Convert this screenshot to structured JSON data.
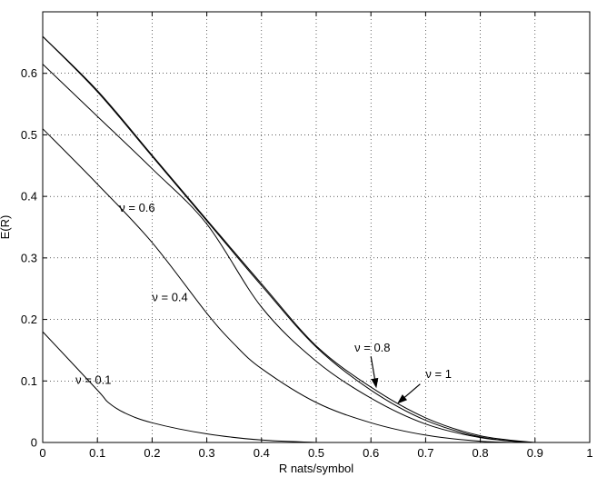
{
  "chart_data": {
    "type": "line",
    "title": "",
    "xlabel": "R nats/symbol",
    "ylabel": "E(R)",
    "xlim": [
      0,
      1
    ],
    "ylim": [
      0,
      0.7
    ],
    "grid": true,
    "x_ticks": [
      0,
      0.1,
      0.2,
      0.3,
      0.4,
      0.5,
      0.6,
      0.7,
      0.8,
      0.9,
      1
    ],
    "x_tick_labels": [
      "0",
      "0.1",
      "0.2",
      "0.3",
      "0.4",
      "0.5",
      "0.6",
      "0.7",
      "0.8",
      "0.9",
      "1"
    ],
    "y_ticks": [
      0,
      0.1,
      0.2,
      0.3,
      0.4,
      0.5,
      0.6
    ],
    "y_tick_labels": [
      "0",
      "0.1",
      "0.2",
      "0.3",
      "0.4",
      "0.5",
      "0.6"
    ],
    "series": [
      {
        "name": "ν = 0.1",
        "points": [
          [
            0,
            0.18
          ],
          [
            0.1,
            0.085
          ],
          [
            0.12,
            0.065
          ],
          [
            0.15,
            0.048
          ],
          [
            0.2,
            0.032
          ],
          [
            0.3,
            0.014
          ],
          [
            0.4,
            0.004
          ],
          [
            0.5,
            0.0
          ]
        ]
      },
      {
        "name": "ν = 0.4",
        "points": [
          [
            0,
            0.51
          ],
          [
            0.1,
            0.42
          ],
          [
            0.2,
            0.325
          ],
          [
            0.3,
            0.21
          ],
          [
            0.35,
            0.16
          ],
          [
            0.4,
            0.12
          ],
          [
            0.5,
            0.065
          ],
          [
            0.6,
            0.032
          ],
          [
            0.7,
            0.012
          ],
          [
            0.8,
            0.002
          ],
          [
            0.88,
            0.0
          ]
        ]
      },
      {
        "name": "ν = 0.6",
        "points": [
          [
            0,
            0.615
          ],
          [
            0.1,
            0.53
          ],
          [
            0.2,
            0.445
          ],
          [
            0.3,
            0.355
          ],
          [
            0.4,
            0.22
          ],
          [
            0.5,
            0.132
          ],
          [
            0.6,
            0.072
          ],
          [
            0.7,
            0.03
          ],
          [
            0.8,
            0.008
          ],
          [
            0.89,
            0.0
          ]
        ]
      },
      {
        "name": "ν = 0.8",
        "points": [
          [
            0,
            0.66
          ],
          [
            0.1,
            0.57
          ],
          [
            0.2,
            0.465
          ],
          [
            0.3,
            0.36
          ],
          [
            0.4,
            0.255
          ],
          [
            0.5,
            0.155
          ],
          [
            0.6,
            0.085
          ],
          [
            0.7,
            0.036
          ],
          [
            0.8,
            0.009
          ],
          [
            0.89,
            0.0
          ]
        ]
      },
      {
        "name": "ν = 1",
        "points": [
          [
            0,
            0.66
          ],
          [
            0.1,
            0.572
          ],
          [
            0.2,
            0.467
          ],
          [
            0.3,
            0.362
          ],
          [
            0.4,
            0.258
          ],
          [
            0.5,
            0.157
          ],
          [
            0.6,
            0.09
          ],
          [
            0.7,
            0.04
          ],
          [
            0.8,
            0.011
          ],
          [
            0.9,
            0.0
          ]
        ]
      }
    ],
    "annotations": [
      {
        "text": "ν = 0.1",
        "x": 0.06,
        "y": 0.095
      },
      {
        "text": "ν = 0.4",
        "x": 0.2,
        "y": 0.23
      },
      {
        "text": "ν = 0.6",
        "x": 0.14,
        "y": 0.375
      },
      {
        "text": "ν = 0.8",
        "x": 0.57,
        "y": 0.148
      },
      {
        "text": "ν = 1",
        "x": 0.7,
        "y": 0.105
      }
    ],
    "arrows": [
      {
        "from": [
          0.6,
          0.14
        ],
        "to": [
          0.61,
          0.088
        ]
      },
      {
        "from": [
          0.69,
          0.095
        ],
        "to": [
          0.648,
          0.063
        ]
      }
    ]
  }
}
